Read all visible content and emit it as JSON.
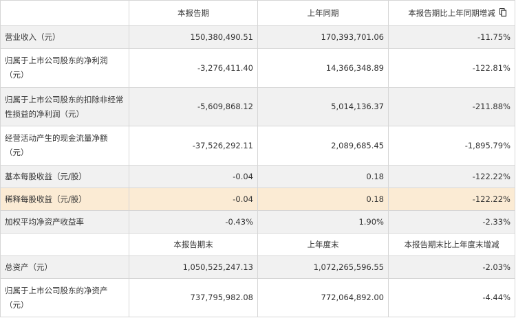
{
  "headers1": [
    "",
    "本报告期",
    "上年同期",
    "本报告期比上年同期增减"
  ],
  "rows1": [
    {
      "label": "营业收入（元）",
      "current": "150,380,490.51",
      "previous": "170,393,701.06",
      "change": "-11.75%"
    },
    {
      "label": "归属于上市公司股东的净利润（元）",
      "current": "-3,276,411.40",
      "previous": "14,366,348.89",
      "change": "-122.81%"
    },
    {
      "label": "归属于上市公司股东的扣除非经常性损益的净利润（元）",
      "current": "-5,609,868.12",
      "previous": "5,014,136.37",
      "change": "-211.88%"
    },
    {
      "label": "经营活动产生的现金流量净额（元）",
      "current": "-37,526,292.11",
      "previous": "2,089,685.45",
      "change": "-1,895.79%"
    },
    {
      "label": "基本每股收益（元/股）",
      "current": "-0.04",
      "previous": "0.18",
      "change": "-122.22%"
    },
    {
      "label": "稀释每股收益（元/股）",
      "current": "-0.04",
      "previous": "0.18",
      "change": "-122.22%"
    },
    {
      "label": "加权平均净资产收益率",
      "current": "-0.43%",
      "previous": "1.90%",
      "change": "-2.33%"
    }
  ],
  "headers2": [
    "",
    "本报告期末",
    "上年度末",
    "本报告期末比上年度末增减"
  ],
  "rows2": [
    {
      "label": "总资产（元）",
      "current": "1,050,525,247.13",
      "previous": "1,072,265,596.55",
      "change": "-2.03%"
    },
    {
      "label": "归属于上市公司股东的净资产（元）",
      "current": "737,795,982.08",
      "previous": "772,064,892.00",
      "change": "-4.44%"
    }
  ],
  "icons": {
    "copy": "copy-icon"
  },
  "colors": {
    "highlight_row": "#fbebd4",
    "shaded_row": "#f1f1f1",
    "border": "#d6d6d6"
  }
}
